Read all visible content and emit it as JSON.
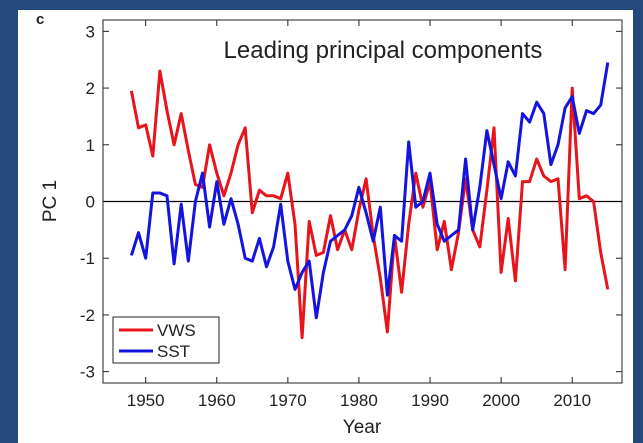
{
  "chart_data": {
    "type": "line",
    "panel_label": "c",
    "title": "Leading principal components",
    "x_label": "Year",
    "y_label": "PC 1",
    "x": [
      1948,
      1949,
      1950,
      1951,
      1952,
      1953,
      1954,
      1955,
      1956,
      1957,
      1958,
      1959,
      1960,
      1961,
      1962,
      1963,
      1964,
      1965,
      1966,
      1967,
      1968,
      1969,
      1970,
      1971,
      1972,
      1973,
      1974,
      1975,
      1976,
      1977,
      1978,
      1979,
      1980,
      1981,
      1982,
      1983,
      1984,
      1985,
      1986,
      1987,
      1988,
      1989,
      1990,
      1991,
      1992,
      1993,
      1994,
      1995,
      1996,
      1997,
      1998,
      1999,
      2000,
      2001,
      2002,
      2003,
      2004,
      2005,
      2006,
      2007,
      2008,
      2009,
      2010,
      2011,
      2012,
      2013,
      2014,
      2015
    ],
    "series": [
      {
        "name": "VWS",
        "color": "#e8141b",
        "values": [
          1.95,
          1.3,
          1.35,
          0.8,
          2.3,
          1.6,
          1.0,
          1.55,
          0.9,
          0.3,
          0.25,
          1.0,
          0.5,
          0.1,
          0.5,
          1.0,
          1.3,
          -0.2,
          0.2,
          0.1,
          0.1,
          0.05,
          0.5,
          -0.4,
          -2.4,
          -0.35,
          -0.95,
          -0.9,
          -0.25,
          -0.85,
          -0.5,
          -0.85,
          -0.15,
          0.4,
          -0.6,
          -1.35,
          -2.3,
          -0.6,
          -1.6,
          -0.4,
          0.5,
          -0.1,
          0.35,
          -0.85,
          -0.35,
          -1.2,
          -0.55,
          0.4,
          -0.5,
          -0.8,
          0.2,
          1.3,
          -1.25,
          -0.3,
          -1.4,
          0.35,
          0.35,
          0.75,
          0.45,
          0.35,
          0.4,
          -1.2,
          2.0,
          0.05,
          0.1,
          0.0,
          -0.9,
          -1.55
        ]
      },
      {
        "name": "SST",
        "color": "#1414e0",
        "values": [
          -0.95,
          -0.55,
          -1.0,
          0.15,
          0.15,
          0.1,
          -1.1,
          -0.05,
          -1.05,
          0.0,
          0.5,
          -0.45,
          0.35,
          -0.4,
          0.05,
          -0.4,
          -1.0,
          -1.05,
          -0.65,
          -1.15,
          -0.8,
          -0.05,
          -1.05,
          -1.55,
          -1.25,
          -1.05,
          -2.05,
          -1.25,
          -0.7,
          -0.6,
          -0.5,
          -0.25,
          0.25,
          -0.2,
          -0.7,
          -0.1,
          -1.65,
          -0.6,
          -0.7,
          1.05,
          -0.1,
          0.0,
          0.5,
          -0.4,
          -0.7,
          -0.6,
          -0.5,
          0.75,
          -0.5,
          0.25,
          1.25,
          0.65,
          0.05,
          0.7,
          0.45,
          1.55,
          1.4,
          1.75,
          1.55,
          0.65,
          1.0,
          1.65,
          1.85,
          1.2,
          1.6,
          1.55,
          1.7,
          2.45
        ]
      }
    ],
    "xlim": [
      1944,
      2017
    ],
    "xticks": [
      1950,
      1960,
      1970,
      1980,
      1990,
      2000,
      2010
    ],
    "ylim": [
      -3.2,
      3.2
    ],
    "yticks": [
      -3,
      -2,
      -1,
      0,
      1,
      2,
      3
    ],
    "reference_line": 0,
    "legend": "lower left"
  }
}
